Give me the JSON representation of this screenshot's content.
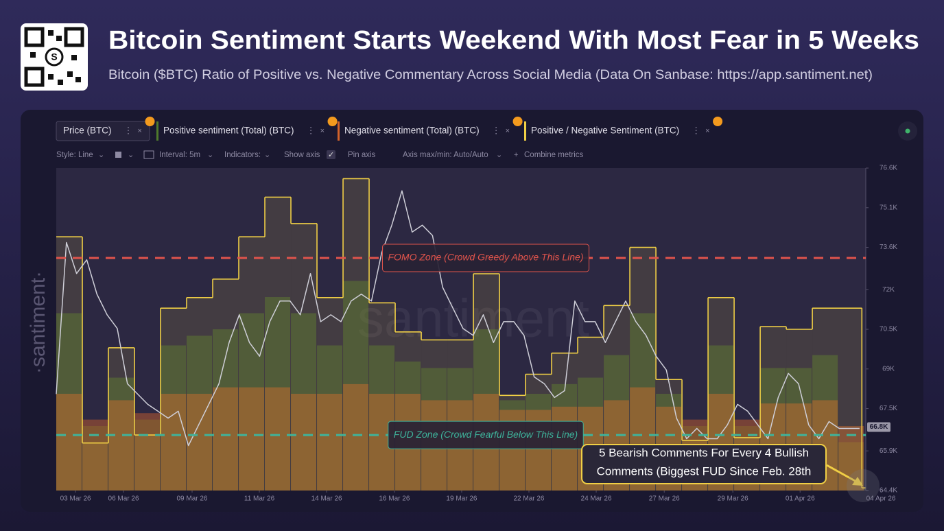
{
  "header": {
    "title": "Bitcoin Sentiment Starts Weekend With Most Fear in 5 Weeks",
    "subtitle": "Bitcoin ($BTC) Ratio of Positive vs. Negative Commentary Across Social Media (Data On Sanbase: https://app.santiment.net)"
  },
  "toolbar": {
    "style": "Style: Line",
    "interval": "Interval: 5m",
    "indicators": "Indicators:",
    "show_axis": "Show axis",
    "pin_axis": "Pin axis",
    "axis_range": "Axis max/min: Auto/Auto",
    "combine": "Combine metrics"
  },
  "watermark": "·santiment·",
  "chart_data": {
    "type": "line",
    "watermark_center": "santiment",
    "xlim": [
      0,
      31.05
    ],
    "xticks": [
      {
        "value": 0.74,
        "label": "03 Mar 26"
      },
      {
        "value": 2.58,
        "label": "06 Mar 26"
      },
      {
        "value": 5.21,
        "label": "09 Mar 26"
      },
      {
        "value": 7.79,
        "label": "11 Mar 26"
      },
      {
        "value": 10.37,
        "label": "14 Mar 26"
      },
      {
        "value": 12.97,
        "label": "16 Mar 26"
      },
      {
        "value": 15.55,
        "label": "19 Mar 26"
      },
      {
        "value": 18.13,
        "label": "22 Mar 26"
      },
      {
        "value": 20.71,
        "label": "24 Mar 26"
      },
      {
        "value": 23.32,
        "label": "27 Mar 26"
      },
      {
        "value": 25.95,
        "label": "29 Mar 26"
      },
      {
        "value": 28.53,
        "label": "01 Apr 26"
      },
      {
        "value": 31.63,
        "label": "04 Apr 26"
      }
    ],
    "ylim": [
      64400,
      76600
    ],
    "yticks": [
      {
        "value": 64400,
        "label": "64.4K"
      },
      {
        "value": 65900,
        "label": "65.9K"
      },
      {
        "value": 67500,
        "label": "67.5K"
      },
      {
        "value": 69000,
        "label": "69K"
      },
      {
        "value": 70500,
        "label": "70.5K"
      },
      {
        "value": 72000,
        "label": "72K"
      },
      {
        "value": 73600,
        "label": "73.6K"
      },
      {
        "value": 75100,
        "label": "75.1K"
      },
      {
        "value": 76600,
        "label": "76.6K"
      }
    ],
    "y2lim": [
      0.79,
      2.01
    ],
    "y3lim": [
      0,
      100
    ],
    "grid": false,
    "series": [
      {
        "name": "Price (BTC)",
        "kind": "line",
        "axis": "y",
        "color": "#cfcfd8",
        "x": [
          0,
          0.39,
          0.78,
          1.17,
          1.56,
          1.95,
          2.34,
          2.73,
          3.12,
          3.51,
          3.9,
          4.29,
          4.68,
          5.07,
          5.46,
          5.85,
          6.24,
          6.63,
          7.02,
          7.41,
          7.8,
          8.19,
          8.58,
          8.97,
          9.36,
          9.75,
          10.14,
          10.53,
          10.92,
          11.31,
          11.7,
          12.09,
          12.48,
          12.87,
          13.26,
          13.65,
          14.04,
          14.43,
          14.82,
          15.21,
          15.6,
          15.99,
          16.38,
          16.77,
          17.16,
          17.55,
          17.94,
          18.33,
          18.72,
          19.11,
          19.5,
          19.89,
          20.28,
          20.67,
          21.06,
          21.45,
          21.84,
          22.23,
          22.62,
          23.01,
          23.4,
          23.79,
          24.18,
          24.57,
          24.96,
          25.35,
          25.74,
          26.13,
          26.52,
          26.91,
          27.3,
          27.69,
          28.08,
          28.47,
          28.86,
          29.25,
          29.64,
          30.03,
          30.42,
          30.81
        ],
        "values": [
          68050,
          73785,
          72610,
          73130,
          71830,
          71050,
          70530,
          68440,
          68050,
          67660,
          67400,
          67140,
          67400,
          66100,
          66880,
          67660,
          68440,
          70000,
          71050,
          70000,
          69480,
          70790,
          71570,
          71570,
          71050,
          72610,
          70790,
          71050,
          70790,
          71570,
          71830,
          71570,
          73390,
          74440,
          75740,
          74180,
          74440,
          74050,
          72090,
          71310,
          70530,
          70270,
          71050,
          70000,
          70790,
          70790,
          70270,
          68700,
          68440,
          67920,
          68180,
          71570,
          70790,
          70790,
          70000,
          70790,
          71570,
          70790,
          70270,
          69480,
          68960,
          67140,
          66360,
          66750,
          66360,
          66360,
          66880,
          67660,
          67400,
          66880,
          66360,
          67920,
          68830,
          68440,
          66880,
          66360,
          67010,
          66750,
          66750,
          66750
        ]
      },
      {
        "name": "Positive sentiment (Total) (BTC)",
        "kind": "bar",
        "axis": "y3",
        "color": "#4f7a2c",
        "x": [
          0,
          1,
          2,
          3,
          4,
          5,
          6,
          7,
          8,
          9,
          10,
          11,
          12,
          13,
          14,
          15,
          16,
          17,
          18,
          19,
          20,
          21,
          22,
          23,
          24,
          25,
          26,
          27,
          28,
          29,
          30
        ],
        "values": [
          55,
          20,
          35,
          22,
          45,
          48,
          50,
          55,
          60,
          55,
          45,
          65,
          45,
          40,
          38,
          38,
          50,
          28,
          30,
          33,
          35,
          42,
          55,
          30,
          20,
          45,
          20,
          38,
          38,
          42,
          15
        ]
      },
      {
        "name": "Negative sentiment (Total) (BTC)",
        "kind": "bar",
        "axis": "y3",
        "color": "#d2622a",
        "x": [
          0,
          1,
          2,
          3,
          4,
          5,
          6,
          7,
          8,
          9,
          10,
          11,
          12,
          13,
          14,
          15,
          16,
          17,
          18,
          19,
          20,
          21,
          22,
          23,
          24,
          25,
          26,
          27,
          28,
          29,
          30
        ],
        "values": [
          30,
          22,
          28,
          24,
          30,
          30,
          32,
          32,
          32,
          30,
          30,
          33,
          30,
          30,
          28,
          28,
          30,
          25,
          25,
          26,
          26,
          28,
          32,
          26,
          22,
          30,
          22,
          27,
          27,
          28,
          20
        ]
      },
      {
        "name": "Positive / Negative Sentiment (BTC)",
        "kind": "step",
        "axis": "y2",
        "color": "#f0cf45",
        "x": [
          0,
          1,
          2,
          3,
          4,
          5,
          6,
          7,
          8,
          9,
          10,
          11,
          12,
          13,
          14,
          15,
          16,
          17,
          18,
          19,
          20,
          21,
          22,
          23,
          24,
          25,
          26,
          27,
          28,
          29,
          30.9
        ],
        "values": [
          1.75,
          0.97,
          1.33,
          1.0,
          1.48,
          1.52,
          1.59,
          1.75,
          1.9,
          1.8,
          1.52,
          1.97,
          1.5,
          1.39,
          1.36,
          1.36,
          1.61,
          1.15,
          1.23,
          1.31,
          1.37,
          1.49,
          1.71,
          1.21,
          0.98,
          1.52,
          0.99,
          1.41,
          1.4,
          1.48,
          0.8
        ]
      }
    ],
    "reference_lines": [
      {
        "value": 1.67,
        "axis": "y2",
        "color": "#e0544c",
        "label": "FOMO Zone (Crowd Greedy Above This Line)"
      },
      {
        "value": 1.0,
        "axis": "y2",
        "color": "#3fb39a",
        "label": "FUD Zone (Crowd Fearful Below This Line)"
      }
    ],
    "price_marker": {
      "value": 66800,
      "label": "66.8K"
    },
    "annotation": {
      "lines": [
        "5 Bearish Comments For Every 4 Bullish",
        "Comments (Biggest FUD Since Feb. 28th"
      ],
      "color": "#f0cf45"
    }
  }
}
